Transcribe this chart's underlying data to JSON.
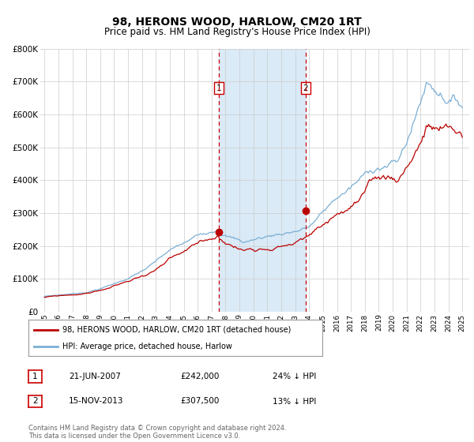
{
  "title": "98, HERONS WOOD, HARLOW, CM20 1RT",
  "subtitle": "Price paid vs. HM Land Registry's House Price Index (HPI)",
  "ylim": [
    0,
    800000
  ],
  "yticks": [
    0,
    100000,
    200000,
    300000,
    400000,
    500000,
    600000,
    700000,
    800000
  ],
  "ytick_labels": [
    "£0",
    "£100K",
    "£200K",
    "£300K",
    "£400K",
    "£500K",
    "£600K",
    "£700K",
    "£800K"
  ],
  "hpi_color": "#7bafd4",
  "price_color": "#bb0000",
  "marker1_price": 242000,
  "marker2_price": 307500,
  "vline_color": "#cc0000",
  "shade_color": "#daeaf7",
  "legend_line1": "98, HERONS WOOD, HARLOW, CM20 1RT (detached house)",
  "legend_line2": "HPI: Average price, detached house, Harlow",
  "table_row1": [
    "1",
    "21-JUN-2007",
    "£242,000",
    "24% ↓ HPI"
  ],
  "table_row2": [
    "2",
    "15-NOV-2013",
    "£307,500",
    "13% ↓ HPI"
  ],
  "footer": "Contains HM Land Registry data © Crown copyright and database right 2024.\nThis data is licensed under the Open Government Licence v3.0.",
  "bg_color": "#ffffff",
  "grid_color": "#cccccc",
  "title_fontsize": 10,
  "subtitle_fontsize": 8.5,
  "axis_fontsize": 7.5
}
